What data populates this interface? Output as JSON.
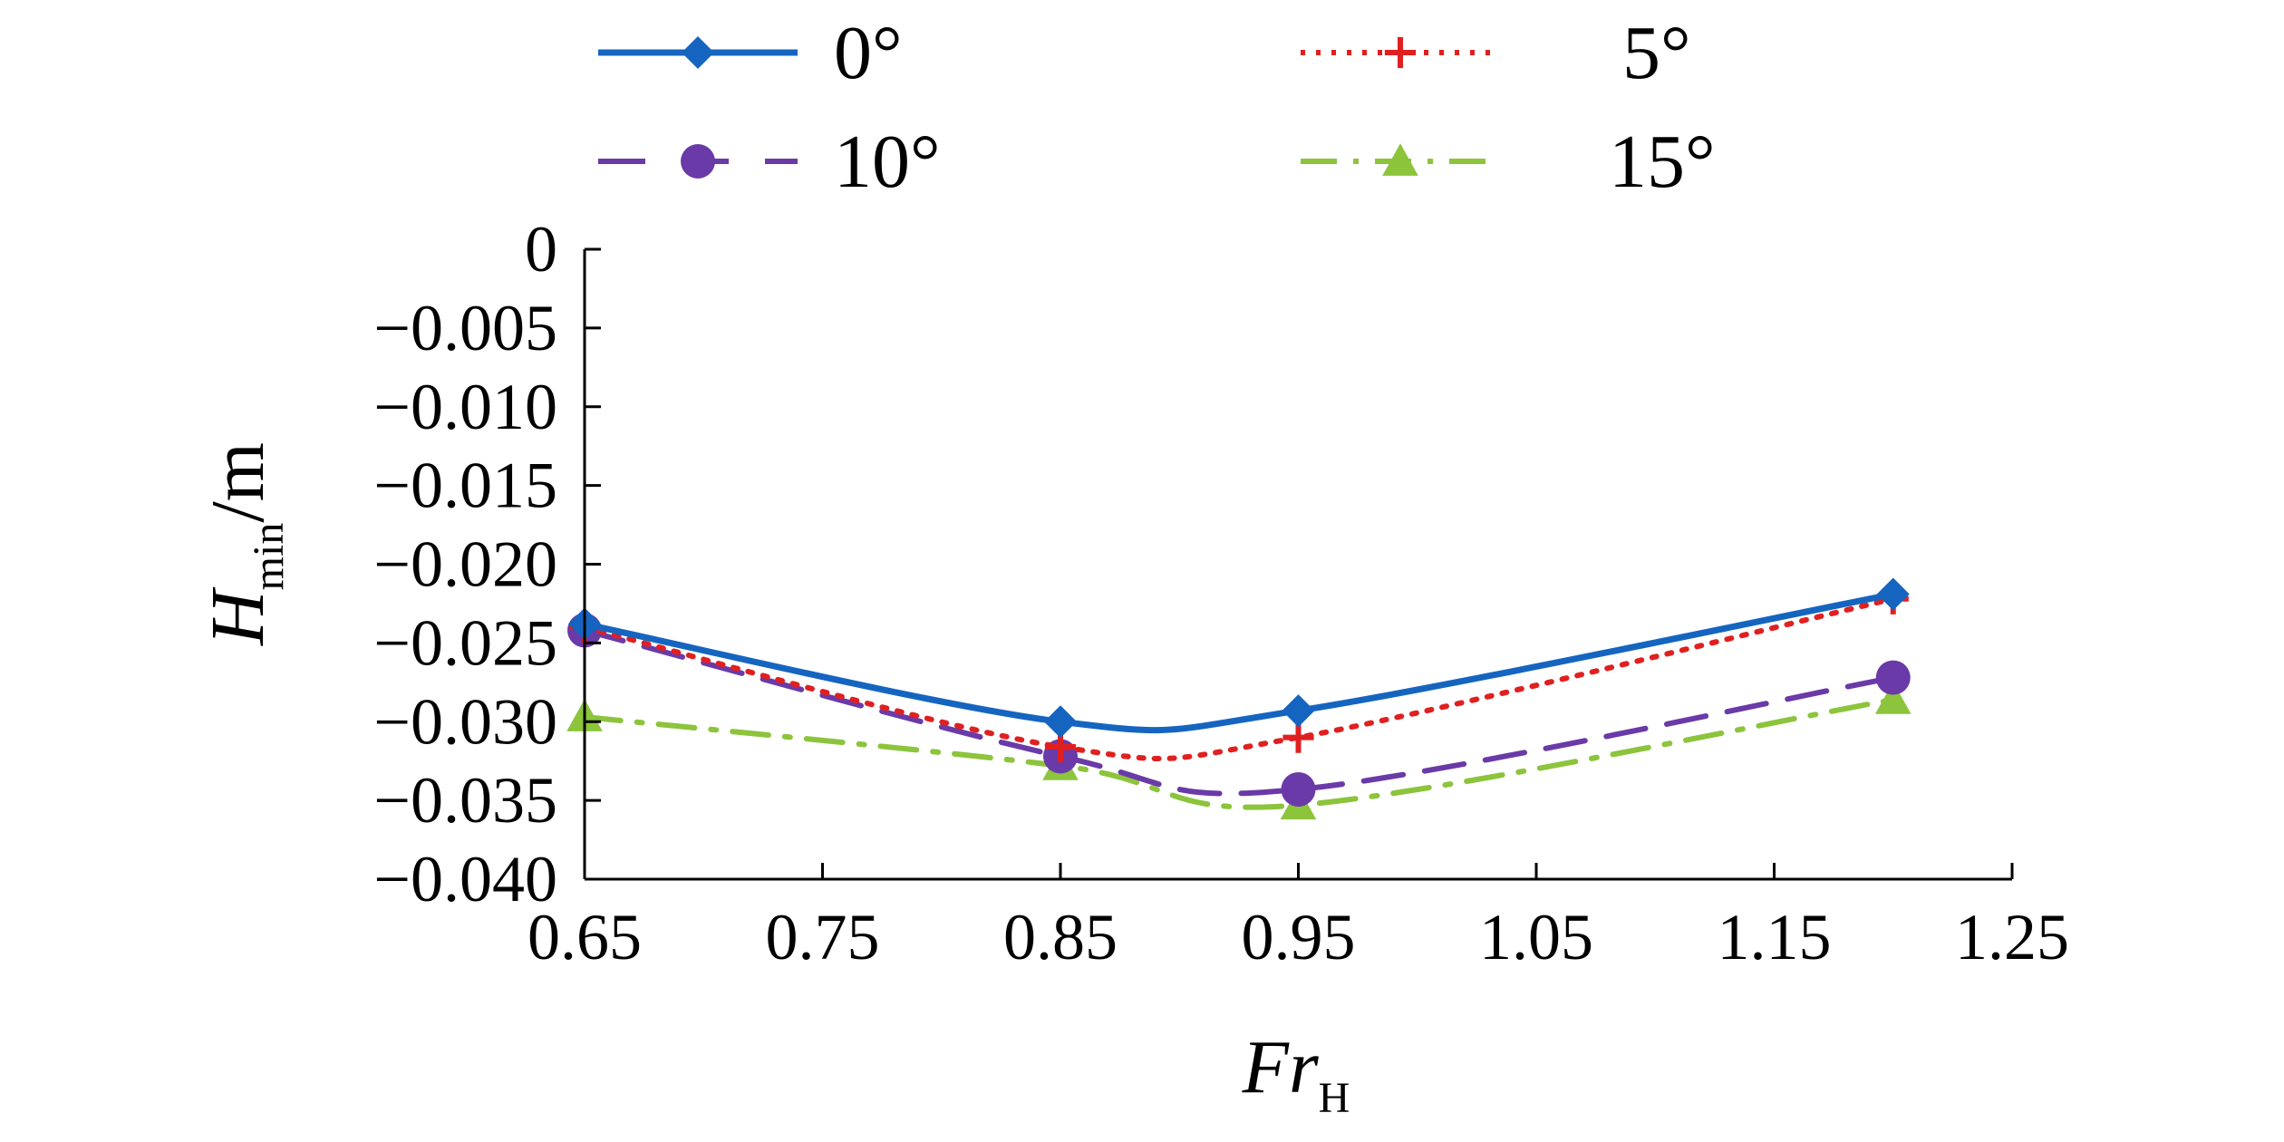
{
  "chart_data": {
    "type": "line",
    "title": "",
    "xlabel": {
      "main": "Fr",
      "sub": "H"
    },
    "ylabel": {
      "main": "H",
      "sub": "min",
      "unit": "/m"
    },
    "xlim": [
      0.65,
      1.25
    ],
    "ylim": [
      -0.04,
      0
    ],
    "x_ticks": [
      0.65,
      0.75,
      0.85,
      0.95,
      1.05,
      1.15,
      1.25
    ],
    "x_tick_labels": [
      "0.65",
      "0.75",
      "0.85",
      "0.95",
      "1.05",
      "1.15",
      "1.25"
    ],
    "y_ticks": [
      0,
      -0.005,
      -0.01,
      -0.015,
      -0.02,
      -0.025,
      -0.03,
      -0.035,
      -0.04
    ],
    "y_tick_labels": [
      "0",
      "−0.005",
      "−0.010",
      "−0.015",
      "−0.020",
      "−0.025",
      "−0.030",
      "−0.035",
      "−0.040"
    ],
    "grid": false,
    "legend_position": "top",
    "x": [
      0.65,
      0.85,
      0.95,
      1.2
    ],
    "series": [
      {
        "name": "0°",
        "values": [
          -0.0238,
          -0.03,
          -0.0293,
          -0.0219
        ],
        "color": "#1565c0",
        "dash": "solid",
        "marker": "diamond"
      },
      {
        "name": "5°",
        "values": [
          -0.024,
          -0.0316,
          -0.031,
          -0.0222
        ],
        "color": "#e02020",
        "dash": "dotted",
        "marker": "plus"
      },
      {
        "name": "10°",
        "values": [
          -0.0242,
          -0.0322,
          -0.0343,
          -0.0272
        ],
        "color": "#6a3aa8",
        "dash": "dashed",
        "marker": "circle"
      },
      {
        "name": "15°",
        "values": [
          -0.0297,
          -0.0328,
          -0.0353,
          -0.0286
        ],
        "color": "#8cc43c",
        "dash": "dashdot",
        "marker": "triangle"
      }
    ]
  }
}
